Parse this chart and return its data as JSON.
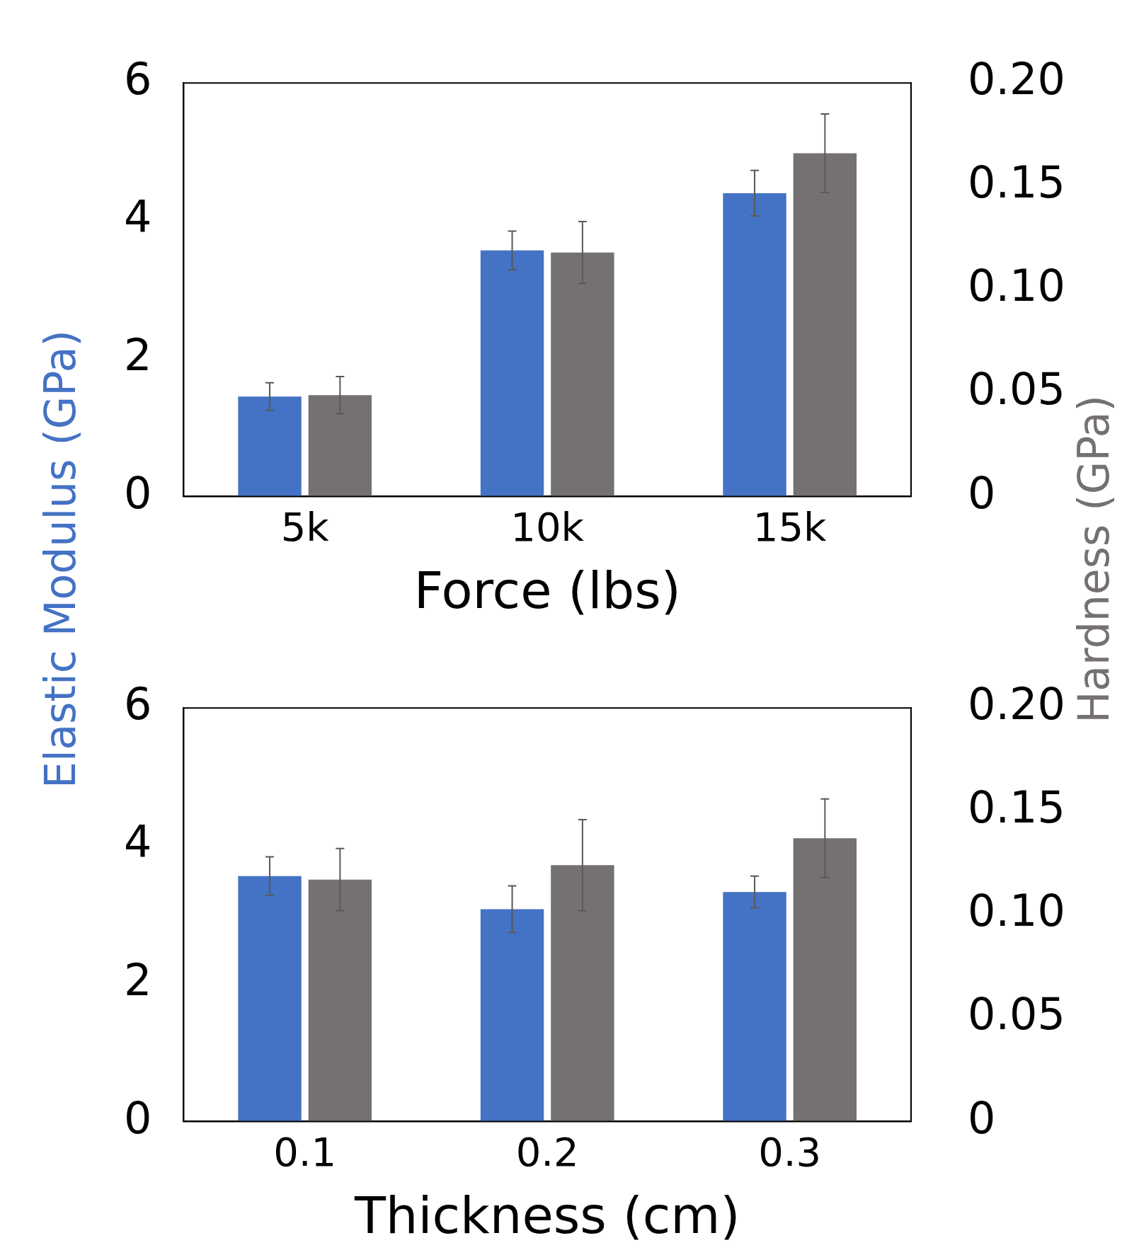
{
  "chart_data": [
    {
      "type": "bar",
      "xlabel": "Force (lbs)",
      "ylabel": "Elastic Modulus (GPa)",
      "y2label": "Hardness (GPa)",
      "categories": [
        "5k",
        "10k",
        "15k"
      ],
      "ylim": [
        0,
        6
      ],
      "yticks": [
        0,
        2,
        4,
        6
      ],
      "y2lim": [
        0,
        0.2
      ],
      "y2ticks": [
        {
          "value": 0,
          "label": "0"
        },
        {
          "value": 0.05,
          "label": "0.05"
        },
        {
          "value": 0.1,
          "label": "0.10"
        },
        {
          "value": 0.15,
          "label": "0.15"
        },
        {
          "value": 0.2,
          "label": "0.20"
        }
      ],
      "series": [
        {
          "color": "#4472c4",
          "values": [
            1.45,
            3.57,
            4.4
          ],
          "errors": [
            0.2,
            0.28,
            0.33
          ]
        },
        {
          "color": "#767171",
          "axis": "y2",
          "values": [
            0.049,
            0.118,
            0.166
          ],
          "errors": [
            0.009,
            0.015,
            0.019
          ]
        }
      ]
    },
    {
      "type": "bar",
      "xlabel": "Thickness (cm)",
      "categories": [
        "0.1",
        "0.2",
        "0.3"
      ],
      "ylim": [
        0,
        6
      ],
      "yticks": [
        0,
        2,
        4,
        6
      ],
      "y2lim": [
        0,
        0.2
      ],
      "y2ticks": [
        {
          "value": 0,
          "label": "0"
        },
        {
          "value": 0.05,
          "label": "0.05"
        },
        {
          "value": 0.1,
          "label": "0.10"
        },
        {
          "value": 0.15,
          "label": "0.15"
        },
        {
          "value": 0.2,
          "label": "0.20"
        }
      ],
      "series": [
        {
          "color": "#4472c4",
          "values": [
            3.56,
            3.08,
            3.33
          ],
          "errors": [
            0.28,
            0.34,
            0.23
          ]
        },
        {
          "color": "#767171",
          "axis": "y2",
          "values": [
            0.117,
            0.124,
            0.137
          ],
          "errors": [
            0.015,
            0.022,
            0.019
          ]
        }
      ]
    }
  ]
}
